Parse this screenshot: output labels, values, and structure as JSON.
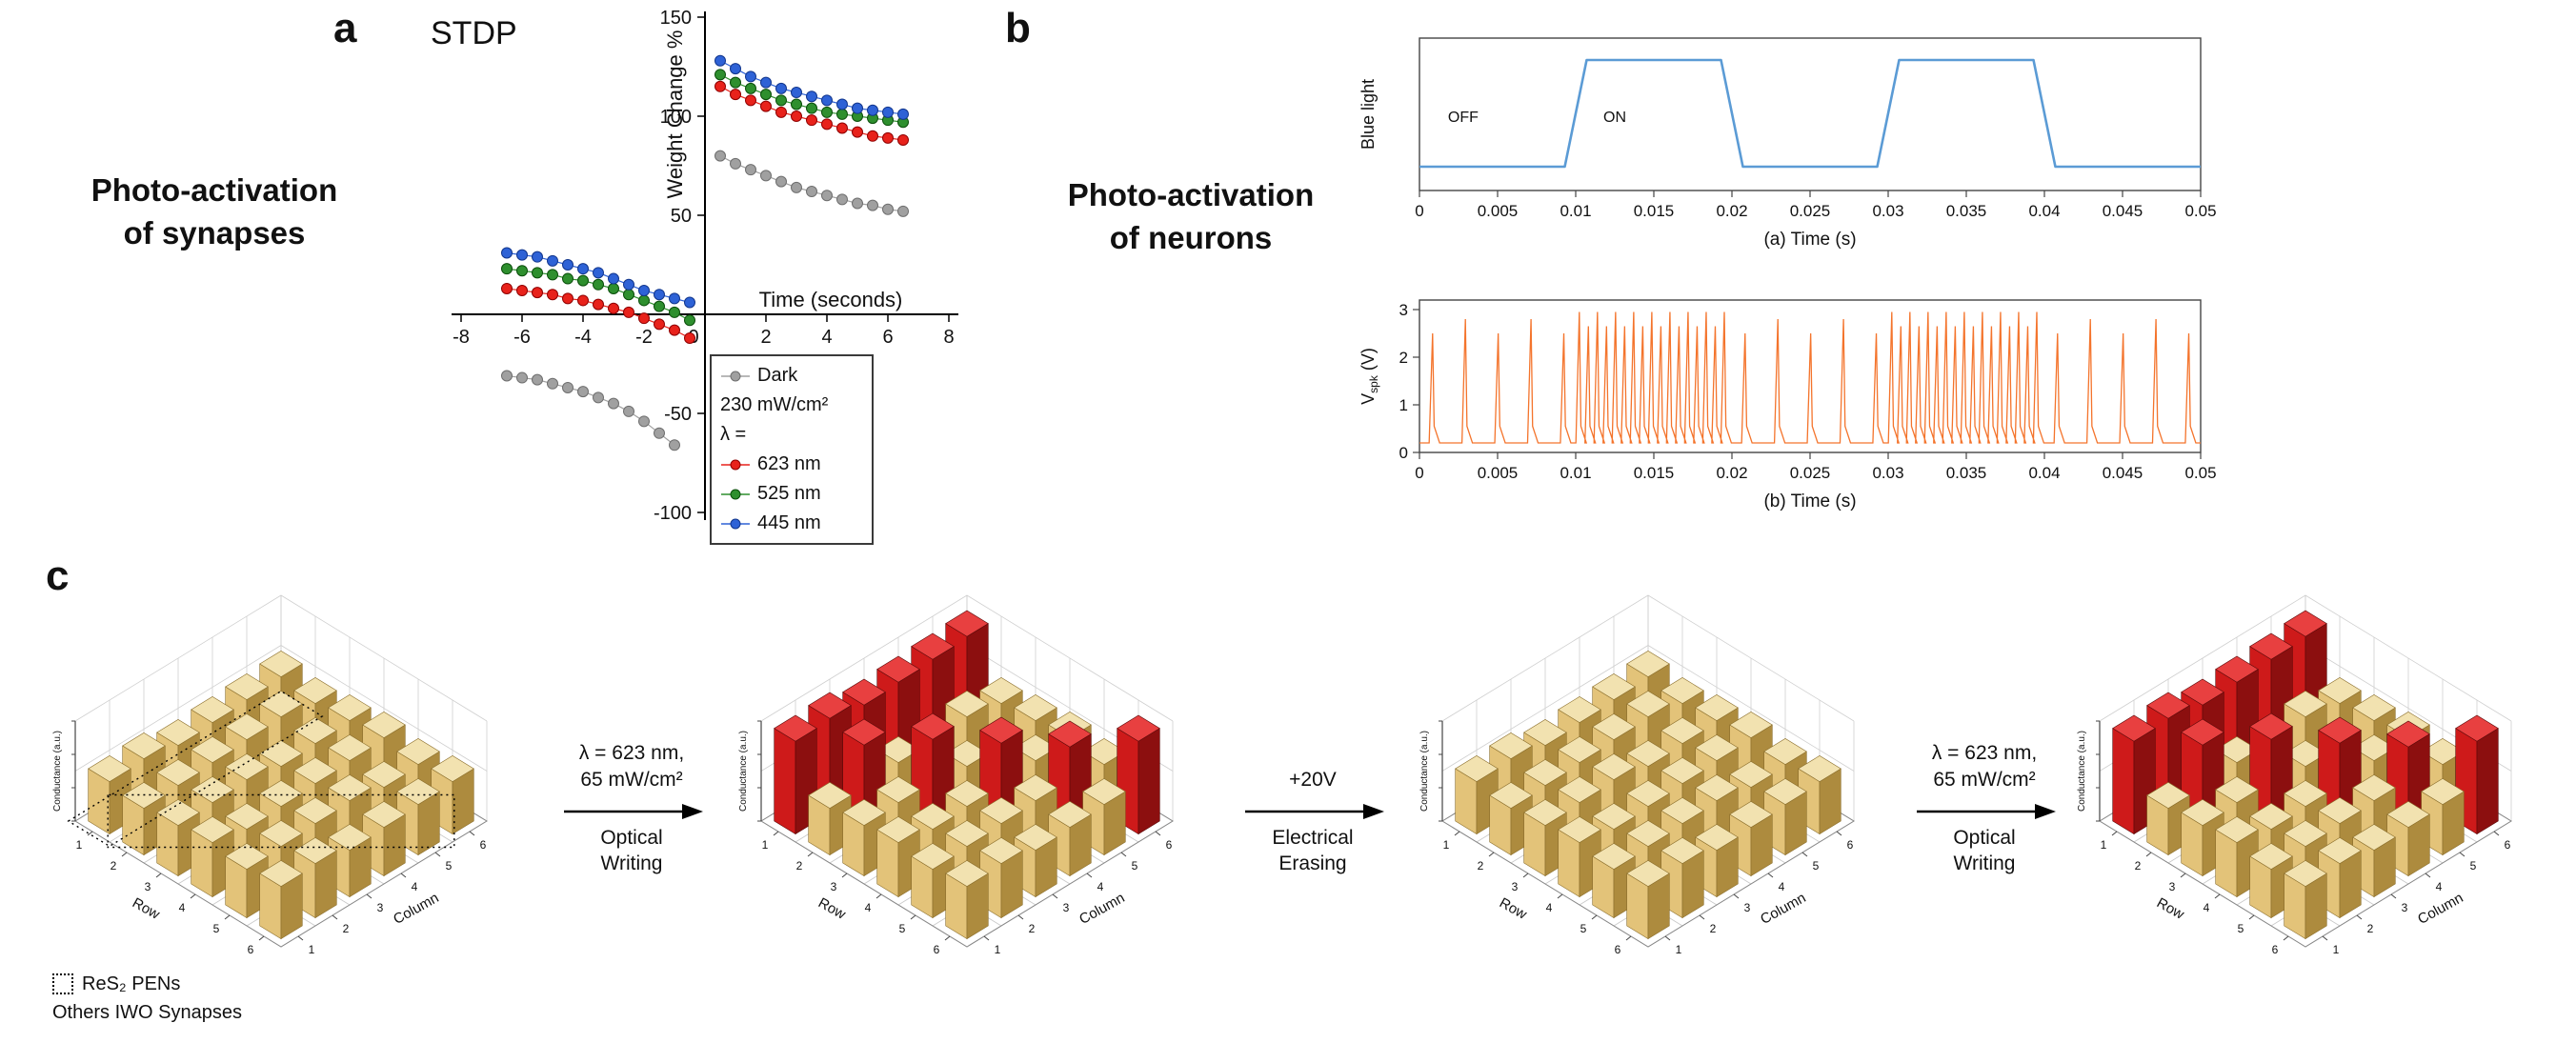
{
  "figure": {
    "panel_a": {
      "label": "a",
      "plot_title": "STDP",
      "side_title": [
        "Photo-activation",
        "of synapses"
      ]
    },
    "panel_b": {
      "label": "b",
      "side_title": [
        "Photo-activation",
        "of neurons"
      ]
    },
    "panel_c": {
      "label": "c",
      "legend": [
        "ReS₂ PENs",
        "Others IWO Synapses"
      ],
      "transitions": [
        {
          "top": [
            "λ = 623 nm,",
            "65 mW/cm²"
          ],
          "bottom": [
            "Optical",
            "Writing"
          ]
        },
        {
          "top": [
            "+20V"
          ],
          "bottom": [
            "Electrical",
            "Erasing"
          ]
        },
        {
          "top": [
            "λ = 623 nm,",
            "65 mW/cm²"
          ],
          "bottom": [
            "Optical",
            "Writing"
          ]
        }
      ]
    }
  },
  "chart_data": [
    {
      "type": "scatter",
      "title": "STDP",
      "xlabel": "Time (seconds)",
      "ylabel": "Weight Change %",
      "xlim": [
        -8,
        8
      ],
      "ylim": [
        -100,
        150
      ],
      "xticks": [
        -8,
        -6,
        -4,
        -2,
        0,
        2,
        4,
        6,
        8
      ],
      "yticks": [
        -100,
        -50,
        0,
        50,
        100,
        150
      ],
      "legend_items": [
        {
          "label": "Dark",
          "marker": "#A0A0A0",
          "edge": "#6E6E6E"
        },
        {
          "label": "230 mW/cm²"
        },
        {
          "label": "λ ="
        },
        {
          "label": "623 nm",
          "marker": "#E8221B",
          "edge": "#8E0000"
        },
        {
          "label": "525 nm",
          "marker": "#2E8F2E",
          "edge": "#0A4D0A"
        },
        {
          "label": "445 nm",
          "marker": "#2E62D6",
          "edge": "#12368C"
        }
      ],
      "series": [
        {
          "name": "Dark",
          "color": "#A0A0A0",
          "edge": "#6E6E6E",
          "branches": [
            {
              "x": [
                -6.5,
                -6,
                -5.5,
                -5,
                -4.5,
                -4,
                -3.5,
                -3,
                -2.5,
                -2,
                -1.5,
                -1
              ],
              "y": [
                -31,
                -32,
                -33,
                -35,
                -37,
                -39,
                -42,
                -45,
                -49,
                -54,
                -60,
                -66
              ]
            },
            {
              "x": [
                0.5,
                1,
                1.5,
                2,
                2.5,
                3,
                3.5,
                4,
                4.5,
                5,
                5.5,
                6,
                6.5
              ],
              "y": [
                80,
                76,
                73,
                70,
                67,
                64,
                62,
                60,
                58,
                56,
                55,
                53,
                52
              ]
            }
          ]
        },
        {
          "name": "623 nm",
          "color": "#E8221B",
          "edge": "#8E0000",
          "branches": [
            {
              "x": [
                -6.5,
                -6,
                -5.5,
                -5,
                -4.5,
                -4,
                -3.5,
                -3,
                -2.5,
                -2,
                -1.5,
                -1,
                -0.5
              ],
              "y": [
                13,
                12,
                11,
                10,
                8,
                7,
                5,
                3,
                1,
                -2,
                -5,
                -8,
                -12
              ]
            },
            {
              "x": [
                0.5,
                1,
                1.5,
                2,
                2.5,
                3,
                3.5,
                4,
                4.5,
                5,
                5.5,
                6,
                6.5
              ],
              "y": [
                115,
                111,
                108,
                105,
                102,
                100,
                98,
                96,
                94,
                92,
                90,
                89,
                88
              ]
            }
          ]
        },
        {
          "name": "525 nm",
          "color": "#2E8F2E",
          "edge": "#0A4D0A",
          "branches": [
            {
              "x": [
                -6.5,
                -6,
                -5.5,
                -5,
                -4.5,
                -4,
                -3.5,
                -3,
                -2.5,
                -2,
                -1.5,
                -1,
                -0.5
              ],
              "y": [
                23,
                22,
                21,
                20,
                18,
                17,
                15,
                13,
                10,
                7,
                4,
                1,
                -3
              ]
            },
            {
              "x": [
                0.5,
                1,
                1.5,
                2,
                2.5,
                3,
                3.5,
                4,
                4.5,
                5,
                5.5,
                6,
                6.5
              ],
              "y": [
                121,
                117,
                114,
                111,
                108,
                106,
                104,
                102,
                101,
                100,
                99,
                98,
                97
              ]
            }
          ]
        },
        {
          "name": "445 nm",
          "color": "#2E62D6",
          "edge": "#12368C",
          "branches": [
            {
              "x": [
                -6.5,
                -6,
                -5.5,
                -5,
                -4.5,
                -4,
                -3.5,
                -3,
                -2.5,
                -2,
                -1.5,
                -1,
                -0.5
              ],
              "y": [
                31,
                30,
                29,
                27,
                25,
                23,
                21,
                18,
                15,
                12,
                10,
                8,
                6
              ]
            },
            {
              "x": [
                0.5,
                1,
                1.5,
                2,
                2.5,
                3,
                3.5,
                4,
                4.5,
                5,
                5.5,
                6,
                6.5
              ],
              "y": [
                128,
                124,
                120,
                117,
                114,
                112,
                110,
                108,
                106,
                104,
                103,
                102,
                101
              ]
            }
          ]
        }
      ]
    },
    {
      "type": "line",
      "name": "blue-light-stimulus",
      "xlabel": "(a) Time (s)",
      "ylabel": "Blue light",
      "xlim": [
        0,
        0.05
      ],
      "xticks": [
        0,
        0.005,
        0.01,
        0.015,
        0.02,
        0.025,
        0.03,
        0.035,
        0.04,
        0.045,
        0.05
      ],
      "annotations": [
        {
          "text": "OFF",
          "t": 0.0028
        },
        {
          "text": "ON",
          "t": 0.0125
        }
      ],
      "color": "#5B9BD5",
      "x": [
        0,
        0.0093,
        0.0107,
        0.0193,
        0.0207,
        0.0293,
        0.0307,
        0.0393,
        0.0407,
        0.05
      ],
      "y": [
        0,
        0,
        1,
        1,
        0,
        0,
        1,
        1,
        0,
        0
      ]
    },
    {
      "type": "line",
      "name": "neuron-spiking-output",
      "xlabel": "(b) Time (s)",
      "ylabel": "Vspk (V)",
      "ylabel_parts": {
        "base": "V",
        "sub": "spk",
        "rest": " (V)"
      },
      "xlim": [
        0,
        0.05
      ],
      "ylim": [
        0,
        3
      ],
      "xticks": [
        0,
        0.005,
        0.01,
        0.015,
        0.02,
        0.025,
        0.03,
        0.035,
        0.04,
        0.045,
        0.05
      ],
      "yticks": [
        0,
        1,
        2,
        3
      ],
      "color": "#F4742C",
      "baseline": 0.2,
      "peak_min": 2.5,
      "peak_max": 2.95,
      "spike_segments": [
        {
          "start": 0,
          "end": 0.01,
          "interval": 0.0021
        },
        {
          "start": 0.01,
          "end": 0.02,
          "interval": 0.00058
        },
        {
          "start": 0.02,
          "end": 0.03,
          "interval": 0.0021
        },
        {
          "start": 0.03,
          "end": 0.04,
          "interval": 0.00058
        },
        {
          "start": 0.04,
          "end": 0.05,
          "interval": 0.0021
        }
      ]
    },
    {
      "type": "bar3d_sequence",
      "row_axis": "Row",
      "col_axis": "Column",
      "z_axis": "Conductance (a.u.)",
      "row_ticks": [
        1,
        2,
        3,
        4,
        5,
        6
      ],
      "col_ticks": [
        1,
        2,
        3,
        4,
        5,
        6
      ],
      "low": {
        "height": 1,
        "color": "#DDB96B"
      },
      "high": {
        "height": 1.8,
        "color": "#C41414"
      },
      "states": [
        {
          "name": "initial",
          "matrix": [
            [
              0,
              0,
              0,
              0,
              0,
              0
            ],
            [
              0,
              0,
              0,
              0,
              0,
              0
            ],
            [
              0,
              0,
              0,
              0,
              0,
              0
            ],
            [
              0,
              0,
              0,
              0,
              0,
              0
            ],
            [
              0,
              0,
              0,
              0,
              0,
              0
            ],
            [
              0,
              0,
              0,
              0,
              0,
              0
            ]
          ]
        },
        {
          "name": "after-optical-writing",
          "matrix": [
            [
              1,
              1,
              1,
              1,
              1,
              1
            ],
            [
              0,
              1,
              0,
              0,
              0,
              0
            ],
            [
              0,
              0,
              1,
              0,
              0,
              0
            ],
            [
              0,
              0,
              0,
              1,
              0,
              0
            ],
            [
              0,
              0,
              0,
              0,
              1,
              0
            ],
            [
              0,
              0,
              0,
              0,
              0,
              1
            ]
          ]
        },
        {
          "name": "after-electrical-erasing",
          "matrix": [
            [
              0,
              0,
              0,
              0,
              0,
              0
            ],
            [
              0,
              0,
              0,
              0,
              0,
              0
            ],
            [
              0,
              0,
              0,
              0,
              0,
              0
            ],
            [
              0,
              0,
              0,
              0,
              0,
              0
            ],
            [
              0,
              0,
              0,
              0,
              0,
              0
            ],
            [
              0,
              0,
              0,
              0,
              0,
              0
            ]
          ]
        },
        {
          "name": "after-optical-writing-2",
          "matrix": [
            [
              1,
              1,
              1,
              1,
              1,
              1
            ],
            [
              0,
              1,
              0,
              0,
              0,
              0
            ],
            [
              0,
              0,
              1,
              0,
              0,
              0
            ],
            [
              0,
              0,
              0,
              1,
              0,
              0
            ],
            [
              0,
              0,
              0,
              0,
              1,
              0
            ],
            [
              0,
              0,
              0,
              0,
              0,
              1
            ]
          ]
        }
      ]
    }
  ]
}
